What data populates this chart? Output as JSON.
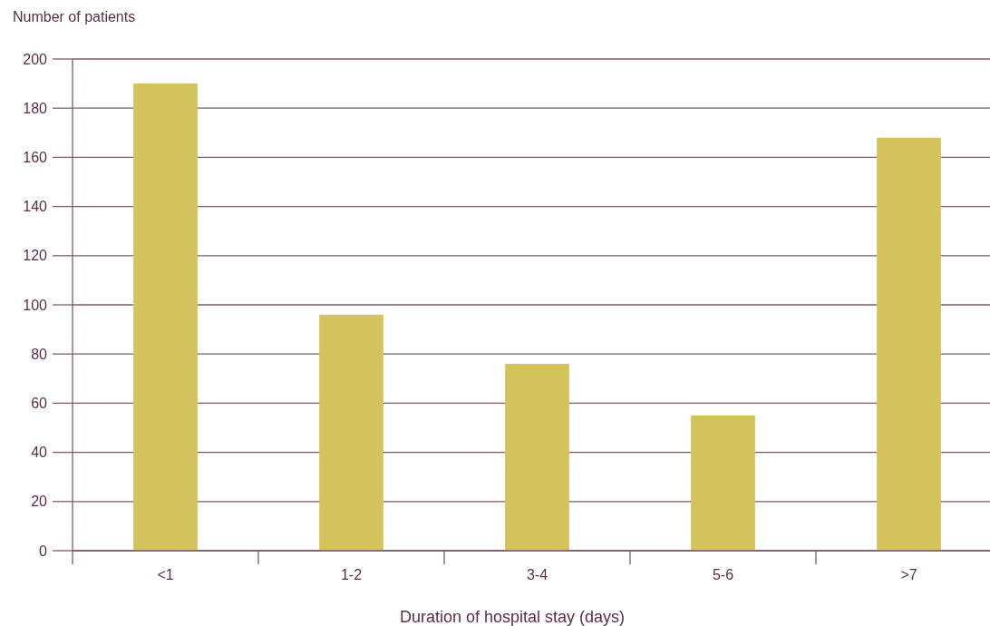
{
  "chart_data": {
    "type": "bar",
    "ylabel": "Number of patients",
    "xlabel": "Duration of hospital stay (days)",
    "categories": [
      "<1",
      "1-2",
      "3-4",
      "5-6",
      ">7"
    ],
    "values": [
      190,
      96,
      76,
      55,
      168
    ],
    "color": "#d4c35c",
    "ylim": [
      0,
      200
    ],
    "yticks": [
      0,
      20,
      40,
      60,
      80,
      100,
      120,
      140,
      160,
      180,
      200
    ],
    "grid": "y"
  }
}
